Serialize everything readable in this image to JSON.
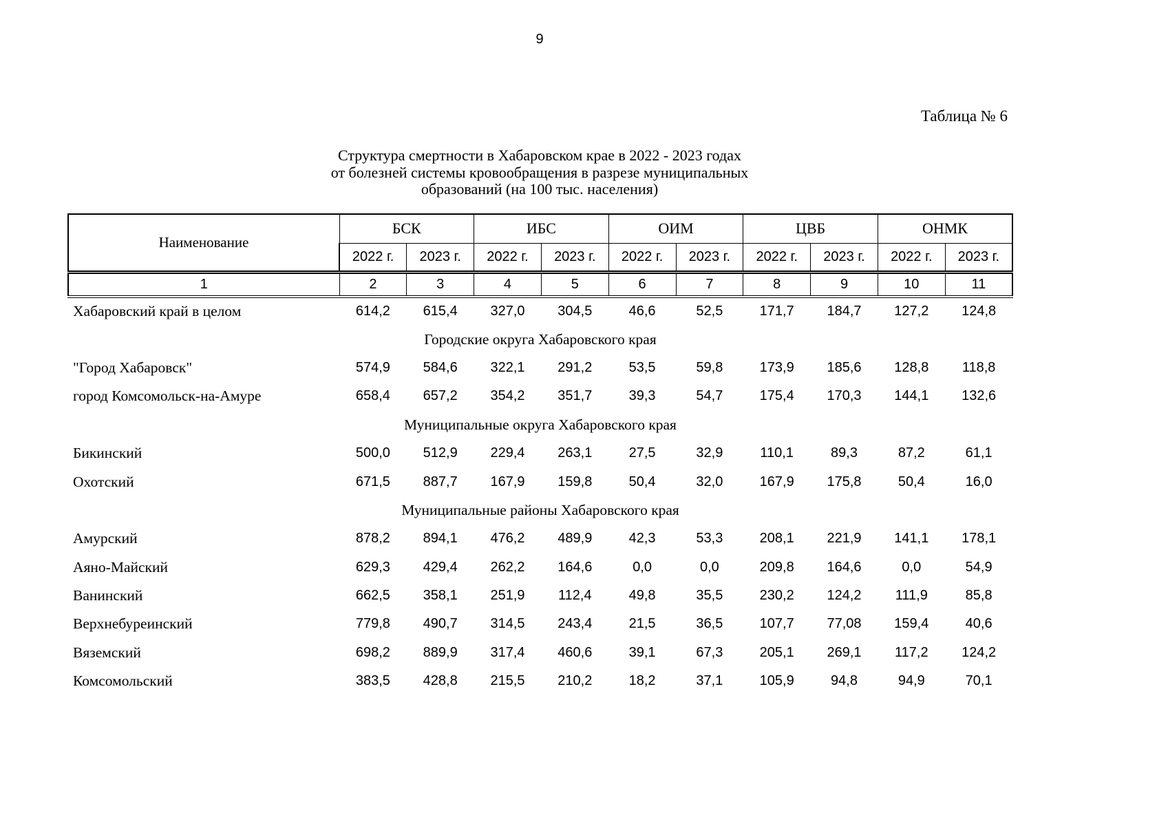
{
  "page": {
    "number": "9",
    "table_caption": "Таблица № 6",
    "title_lines": [
      "Структура смертности в Хабаровском крае в 2022 - 2023 годах",
      "от болезней системы кровообращения в разрезе муниципальных",
      "образований (на 100 тыс. населения)"
    ]
  },
  "table": {
    "name_header": "Наименование",
    "groups": [
      {
        "label": "БСК"
      },
      {
        "label": "ИБС"
      },
      {
        "label": "ОИМ"
      },
      {
        "label": "ЦВБ"
      },
      {
        "label": "ОНМК"
      }
    ],
    "year_headers": [
      "2022 г.",
      "2023 г."
    ],
    "column_numbers": [
      "1",
      "2",
      "3",
      "4",
      "5",
      "6",
      "7",
      "8",
      "9",
      "10",
      "11"
    ],
    "rows": [
      {
        "type": "data",
        "name": "Хабаровский край в целом",
        "values": [
          "614,2",
          "615,4",
          "327,0",
          "304,5",
          "46,6",
          "52,5",
          "171,7",
          "184,7",
          "127,2",
          "124,8"
        ]
      },
      {
        "type": "section",
        "name": "Городские округа Хабаровского края"
      },
      {
        "type": "data",
        "name": "\"Город Хабаровск\"",
        "values": [
          "574,9",
          "584,6",
          "322,1",
          "291,2",
          "53,5",
          "59,8",
          "173,9",
          "185,6",
          "128,8",
          "118,8"
        ]
      },
      {
        "type": "data",
        "name": "город Комсомольск-на-Амуре",
        "values": [
          "658,4",
          "657,2",
          "354,2",
          "351,7",
          "39,3",
          "54,7",
          "175,4",
          "170,3",
          "144,1",
          "132,6"
        ]
      },
      {
        "type": "section",
        "name": "Муниципальные округа Хабаровского края"
      },
      {
        "type": "data",
        "name": "Бикинский",
        "values": [
          "500,0",
          "512,9",
          "229,4",
          "263,1",
          "27,5",
          "32,9",
          "110,1",
          "89,3",
          "87,2",
          "61,1"
        ]
      },
      {
        "type": "data",
        "name": "Охотский",
        "values": [
          "671,5",
          "887,7",
          "167,9",
          "159,8",
          "50,4",
          "32,0",
          "167,9",
          "175,8",
          "50,4",
          "16,0"
        ]
      },
      {
        "type": "section",
        "name": "Муниципальные районы Хабаровского края"
      },
      {
        "type": "data",
        "name": "Амурский",
        "values": [
          "878,2",
          "894,1",
          "476,2",
          "489,9",
          "42,3",
          "53,3",
          "208,1",
          "221,9",
          "141,1",
          "178,1"
        ]
      },
      {
        "type": "data",
        "name": "Аяно-Майский",
        "values": [
          "629,3",
          "429,4",
          "262,2",
          "164,6",
          "0,0",
          "0,0",
          "209,8",
          "164,6",
          "0,0",
          "54,9"
        ]
      },
      {
        "type": "data",
        "name": "Ванинский",
        "values": [
          "662,5",
          "358,1",
          "251,9",
          "112,4",
          "49,8",
          "35,5",
          "230,2",
          "124,2",
          "111,9",
          "85,8"
        ]
      },
      {
        "type": "data",
        "name": "Верхнебуреинский",
        "values": [
          "779,8",
          "490,7",
          "314,5",
          "243,4",
          "21,5",
          "36,5",
          "107,7",
          "77,08",
          "159,4",
          "40,6"
        ]
      },
      {
        "type": "data",
        "name": "Вяземский",
        "values": [
          "698,2",
          "889,9",
          "317,4",
          "460,6",
          "39,1",
          "67,3",
          "205,1",
          "269,1",
          "117,2",
          "124,2"
        ]
      },
      {
        "type": "data",
        "name": "Комсомольский",
        "values": [
          "383,5",
          "428,8",
          "215,5",
          "210,2",
          "18,2",
          "37,1",
          "105,9",
          "94,8",
          "94,9",
          "70,1"
        ]
      }
    ]
  },
  "colors": {
    "text": "#000000",
    "background": "#ffffff",
    "border": "#000000"
  }
}
